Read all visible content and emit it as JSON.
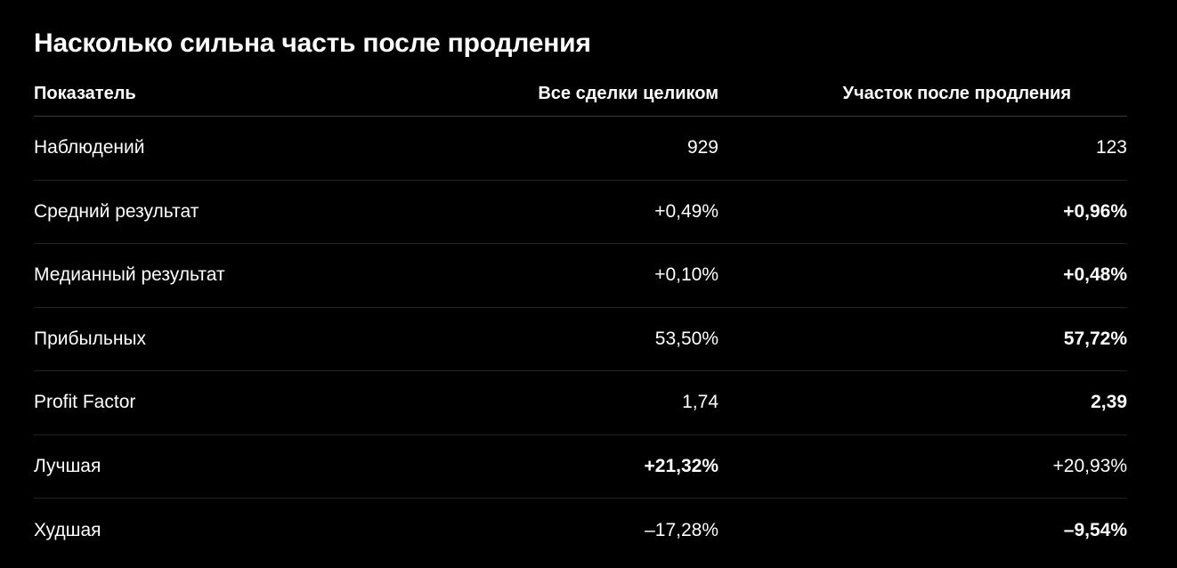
{
  "title": "Насколько сильна часть после продления",
  "table": {
    "headers": [
      "Показатель",
      "Все сделки целиком",
      "Участок после продления"
    ],
    "rows": [
      {
        "label": "Наблюдений",
        "all": "929",
        "after": "123",
        "bold_all": false,
        "bold_after": false
      },
      {
        "label": "Средний результат",
        "all": "+0,49%",
        "after": "+0,96%",
        "bold_all": false,
        "bold_after": true
      },
      {
        "label": "Медианный результат",
        "all": "+0,10%",
        "after": "+0,48%",
        "bold_all": false,
        "bold_after": true
      },
      {
        "label": "Прибыльных",
        "all": "53,50%",
        "after": "57,72%",
        "bold_all": false,
        "bold_after": true
      },
      {
        "label": "Profit Factor",
        "all": "1,74",
        "after": "2,39",
        "bold_all": false,
        "bold_after": true
      },
      {
        "label": "Лучшая",
        "all": "+21,32%",
        "after": "+20,93%",
        "bold_all": true,
        "bold_after": false
      },
      {
        "label": "Худшая",
        "all": "–17,28%",
        "after": "–9,54%",
        "bold_all": false,
        "bold_after": true
      }
    ]
  },
  "colors": {
    "background": "#000000",
    "text": "#ffffff",
    "divider": "#222222"
  }
}
